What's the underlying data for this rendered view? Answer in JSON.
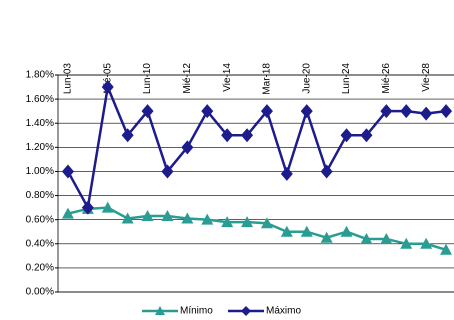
{
  "chart_data": {
    "type": "line",
    "categories": [
      "Lun-03",
      null,
      "Mié-05",
      null,
      "Lun-10",
      null,
      "Mié-12",
      null,
      "Vie-14",
      null,
      "Mar-18",
      null,
      "Jue-20",
      null,
      "Lun-24",
      null,
      "Mié-26",
      null,
      "Vie-28",
      null
    ],
    "series": [
      {
        "name": "Mínimo",
        "color": "#2a9d92",
        "values": [
          0.65,
          0.69,
          0.7,
          0.61,
          0.63,
          0.63,
          0.61,
          0.6,
          0.58,
          0.58,
          0.57,
          0.5,
          0.5,
          0.45,
          0.5,
          0.44,
          0.44,
          0.4,
          0.4,
          0.35
        ]
      },
      {
        "name": "Máximo",
        "color": "#1c1c8c",
        "values": [
          1.0,
          0.7,
          1.7,
          1.3,
          1.5,
          1.0,
          1.2,
          1.5,
          1.3,
          1.3,
          1.5,
          0.98,
          1.5,
          1.0,
          1.3,
          1.3,
          1.5,
          1.5,
          1.48,
          1.5
        ]
      }
    ],
    "ylim": [
      0,
      1.8
    ],
    "yticks": [
      {
        "value": 0,
        "label": "0.00%"
      },
      {
        "value": 0.2,
        "label": "0.20%"
      },
      {
        "value": 0.4,
        "label": "0.40%"
      },
      {
        "value": 0.6,
        "label": "0.60%"
      },
      {
        "value": 0.8,
        "label": "0.80%"
      },
      {
        "value": 1.0,
        "label": "1.00%"
      },
      {
        "value": 1.2,
        "label": "1.20%"
      },
      {
        "value": 1.4,
        "label": "1.40%"
      },
      {
        "value": 1.6,
        "label": "1.60%"
      },
      {
        "value": 1.8,
        "label": "1.80%"
      }
    ],
    "grid": true,
    "legend": "bottom"
  }
}
